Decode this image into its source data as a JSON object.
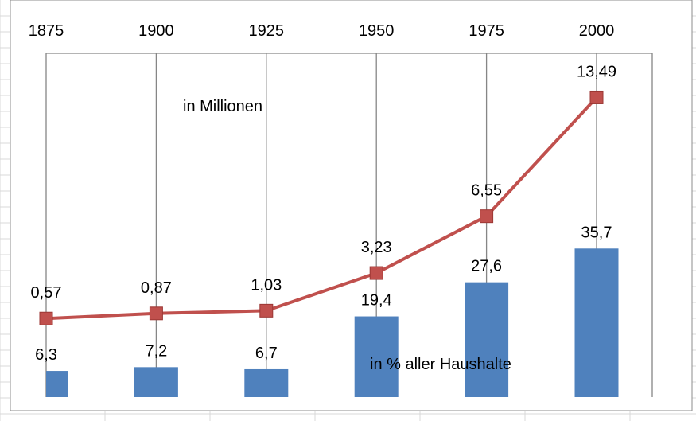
{
  "chart_data": {
    "type": "bar+line",
    "categories": [
      "1875",
      "1900",
      "1925",
      "1950",
      "1975",
      "2000"
    ],
    "series": [
      {
        "type": "line",
        "values": [
          0.57,
          0.87,
          1.03,
          3.23,
          6.55,
          13.49
        ],
        "labels": [
          "0,57",
          "0,87",
          "1,03",
          "3,23",
          "6,55",
          "13,49"
        ],
        "color": "#c0504d",
        "marker": "square"
      },
      {
        "type": "bar",
        "values": [
          6.3,
          7.2,
          6.7,
          19.4,
          27.6,
          35.7
        ],
        "labels": [
          "6,3",
          "7,2",
          "6,7",
          "19,4",
          "27,6",
          "35,7"
        ],
        "color": "#4f81bd"
      }
    ],
    "annotations": {
      "line_unit": "in Millionen",
      "bar_unit": "in % aller Haushalte"
    },
    "x_axis_position": "top",
    "grid": "vertical",
    "legend": "none"
  },
  "colors": {
    "gridline": "#868686",
    "sheet_grid": "#d9d9d9",
    "chart_border": "#8c8c8c"
  }
}
